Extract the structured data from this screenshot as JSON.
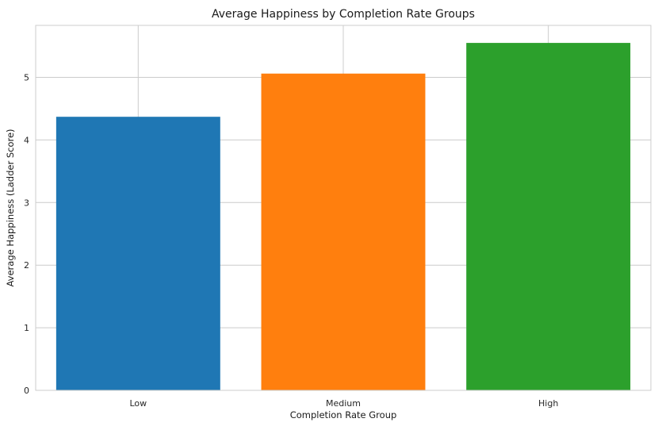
{
  "chart_data": {
    "type": "bar",
    "title": "Average Happiness by Completion Rate Groups",
    "xlabel": "Completion Rate Group",
    "ylabel": "Average Happiness (Ladder Score)",
    "categories": [
      "Low",
      "Medium",
      "High"
    ],
    "values": [
      4.37,
      5.06,
      5.55
    ],
    "colors": [
      "#1f77b4",
      "#ff7f0e",
      "#2ca02c"
    ],
    "ylim": [
      0,
      5.83
    ],
    "yticks": [
      0,
      1,
      2,
      3,
      4,
      5
    ],
    "grid": true,
    "legend": "none"
  }
}
